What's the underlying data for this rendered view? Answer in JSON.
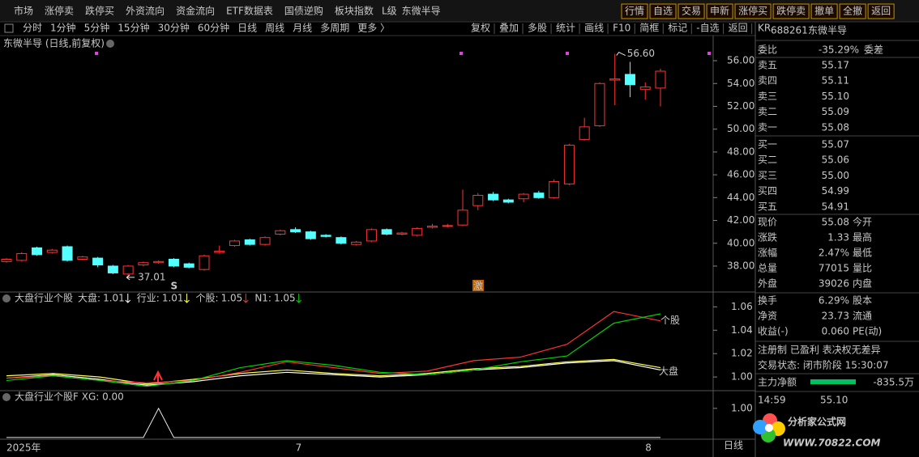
{
  "menu": {
    "items": [
      "市场",
      "涨停卖",
      "跌停买",
      "外资流向",
      "资金流向",
      "ETF数据表",
      "国债逆购",
      "板块指数"
    ],
    "stock_tag": "L级",
    "stock_name": "东微半导",
    "buttons": [
      "行情",
      "自选",
      "交易",
      "申新",
      "涨停买",
      "跌停卖",
      "撤单",
      "全撤",
      "返回"
    ]
  },
  "toolbar": {
    "periods": [
      "分时",
      "1分钟",
      "5分钟",
      "15分钟",
      "30分钟",
      "60分钟",
      "日线",
      "周线",
      "月线",
      "多周期",
      "更多 〉"
    ],
    "tools": [
      "复权",
      "叠加",
      "多股",
      "统计",
      "画线",
      "F10",
      "简框",
      "标记",
      "-自选",
      "返回"
    ]
  },
  "chart": {
    "title": "东微半导 (日线,前复权)",
    "ylim": [
      35.8,
      58.2
    ],
    "yticks": [
      {
        "value": 38,
        "label": "38.00"
      },
      {
        "value": 40,
        "label": "40.00"
      },
      {
        "value": 42,
        "label": "42.00"
      },
      {
        "value": 44,
        "label": "44.00"
      },
      {
        "value": 46,
        "label": "46.00"
      },
      {
        "value": 48,
        "label": "48.00"
      },
      {
        "value": 50,
        "label": "50.00"
      },
      {
        "value": 52,
        "label": "52.00"
      },
      {
        "value": 54,
        "label": "54.00"
      },
      {
        "value": 56,
        "label": "56.00"
      }
    ],
    "open": [
      38.4,
      38.5,
      39.6,
      39.2,
      39.7,
      38.6,
      38.7,
      38.0,
      37.3,
      38.1,
      38.3,
      38.6,
      38.2,
      37.7,
      39.2,
      39.8,
      40.3,
      39.9,
      40.8,
      41.2,
      41.0,
      40.7,
      40.5,
      39.9,
      40.2,
      41.2,
      40.8,
      40.7,
      41.4,
      41.5,
      41.6,
      43.3,
      44.3,
      43.8,
      43.9,
      44.4,
      44.0,
      45.2,
      49.1,
      50.3,
      54.3,
      54.8,
      53.5,
      53.6
    ],
    "high": [
      38.7,
      39.2,
      39.7,
      39.5,
      39.8,
      38.9,
      38.8,
      38.1,
      38.1,
      38.4,
      38.5,
      38.7,
      38.3,
      39.0,
      39.8,
      40.3,
      40.4,
      40.6,
      41.2,
      41.4,
      41.1,
      40.8,
      40.6,
      40.2,
      41.3,
      41.3,
      41.0,
      41.4,
      41.7,
      41.7,
      44.7,
      44.4,
      44.5,
      43.9,
      44.4,
      44.6,
      45.6,
      48.7,
      51.0,
      54.1,
      56.6,
      55.9,
      54.1,
      55.3
    ],
    "low": [
      38.3,
      38.4,
      38.9,
      39.1,
      38.4,
      38.5,
      37.9,
      37.3,
      37.01,
      38.0,
      38.2,
      37.9,
      37.8,
      37.6,
      39.1,
      39.7,
      39.8,
      39.8,
      40.7,
      40.9,
      40.3,
      40.5,
      39.9,
      39.8,
      40.1,
      40.7,
      40.7,
      40.6,
      41.3,
      41.4,
      41.5,
      42.9,
      43.7,
      43.5,
      43.6,
      43.9,
      43.9,
      45.1,
      49.0,
      50.2,
      52.1,
      52.8,
      52.6,
      52.0
    ],
    "close": [
      38.6,
      39.1,
      39.0,
      39.4,
      38.5,
      38.8,
      38.1,
      37.4,
      38.0,
      38.3,
      38.4,
      38.0,
      37.9,
      38.9,
      39.3,
      40.2,
      39.9,
      40.5,
      41.1,
      41.0,
      40.4,
      40.6,
      40.0,
      40.1,
      41.2,
      40.8,
      40.9,
      41.3,
      41.5,
      41.55,
      42.9,
      44.2,
      43.8,
      43.6,
      44.3,
      44.0,
      45.4,
      48.6,
      50.2,
      54.0,
      54.4,
      53.9,
      53.7,
      55.08
    ],
    "high_marker": {
      "value": 56.6,
      "label": "56.60"
    },
    "low_marker": {
      "value": 37.01,
      "label": "37.01"
    },
    "signals": [
      "S",
      "激"
    ]
  },
  "indicator": {
    "title": "大盘行业个股",
    "ylim": [
      0.989,
      1.072
    ],
    "yticks": [
      {
        "value": 1,
        "label": "1.00"
      },
      {
        "value": 1.02,
        "label": "1.02"
      },
      {
        "value": 1.04,
        "label": "1.04"
      },
      {
        "value": 1.06,
        "label": "1.06"
      }
    ],
    "series": [
      {
        "name": "大盘",
        "legend": "大盘:",
        "legend_value": "1.01",
        "color": "#ffffff",
        "values": [
          0.999,
          1.002,
          0.998,
          0.993,
          0.996,
          1.001,
          1.004,
          1.002,
          1.0,
          1.002,
          1.006,
          1.008,
          1.012,
          1.014,
          1.006
        ]
      },
      {
        "name": "行业",
        "legend": "行业:",
        "legend_value": "1.01",
        "color": "#ffff54",
        "values": [
          1.001,
          1.003,
          1.0,
          0.994,
          0.998,
          1.003,
          1.006,
          1.003,
          1.001,
          1.003,
          1.007,
          1.009,
          1.013,
          1.015,
          1.008
        ]
      },
      {
        "name": "个股",
        "legend": "个股:",
        "legend_value": "1.05",
        "color": "#ff3232",
        "values": [
          0.999,
          1.001,
          0.997,
          0.995,
          0.997,
          1.004,
          1.013,
          1.008,
          1.003,
          1.005,
          1.014,
          1.017,
          1.028,
          1.056,
          1.048
        ]
      },
      {
        "name": "N1",
        "legend": "N1:",
        "legend_value": "1.05",
        "color": "#00d200",
        "values": [
          0.997,
          1.001,
          0.997,
          0.992,
          0.997,
          1.008,
          1.014,
          1.01,
          1.004,
          1.002,
          1.006,
          1.013,
          1.018,
          1.046,
          1.054
        ]
      }
    ]
  },
  "xg": {
    "title": "大盘行业个股F XG: 0.00",
    "ylim": [
      -0.06,
      1.58
    ],
    "yticks": [
      {
        "value": 1,
        "label": "1.00"
      }
    ],
    "values": [
      0,
      0,
      0,
      0,
      0,
      0,
      0,
      0,
      0,
      0,
      1,
      0,
      0,
      0,
      0,
      0,
      0,
      0,
      0,
      0,
      0,
      0,
      0,
      0,
      0,
      0,
      0,
      0,
      0,
      0,
      0,
      0,
      0,
      0,
      0,
      0,
      0,
      0,
      0,
      0,
      0,
      0,
      0,
      0
    ]
  },
  "time_axis": {
    "labels": [
      "2025年",
      "7",
      "8"
    ],
    "period": "日线"
  },
  "quote": {
    "code": "688261",
    "name": "东微半导",
    "badge": "KR",
    "ratio": [
      "委比",
      "-35.29%",
      "委差"
    ],
    "asks": [
      [
        "卖五",
        "55.17"
      ],
      [
        "卖四",
        "55.11"
      ],
      [
        "卖三",
        "55.10"
      ],
      [
        "卖二",
        "55.09"
      ],
      [
        "卖一",
        "55.08"
      ]
    ],
    "bids": [
      [
        "买一",
        "55.07"
      ],
      [
        "买二",
        "55.06"
      ],
      [
        "买三",
        "55.00"
      ],
      [
        "买四",
        "54.99"
      ],
      [
        "买五",
        "54.91"
      ]
    ],
    "stats": [
      [
        "现价",
        "55.08",
        "今开"
      ],
      [
        "涨跌",
        "1.33",
        "最高"
      ],
      [
        "涨幅",
        "2.47%",
        "最低"
      ],
      [
        "总量",
        "77015",
        "量比"
      ],
      [
        "外盘",
        "39026",
        "内盘"
      ]
    ],
    "stats2": [
      [
        "换手",
        "6.29%",
        "股本"
      ],
      [
        "净资",
        "23.73",
        "流通"
      ],
      [
        "收益(-)",
        "0.060",
        "PE(动)"
      ]
    ],
    "tags": "注册制 已盈利 表决权无差异",
    "status": "交易状态: 闭市阶段 15:30:07",
    "flow": [
      "主力净额",
      "-835.5万"
    ],
    "tick": [
      "14:59",
      "55.10"
    ]
  },
  "watermark": {
    "title": "分析家公式网",
    "url": "WWW.70822.COM"
  }
}
